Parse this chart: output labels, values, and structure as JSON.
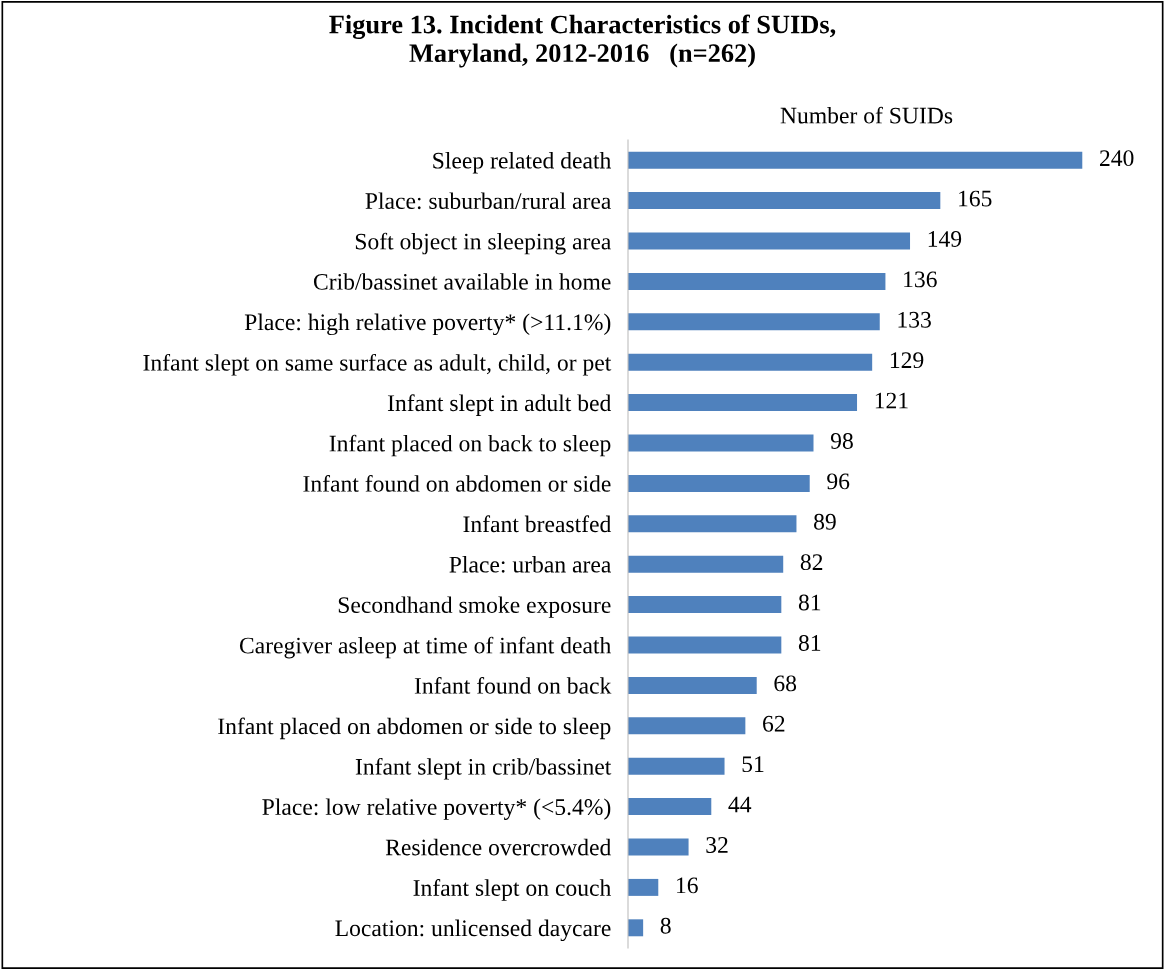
{
  "chart_data": {
    "type": "bar",
    "orientation": "horizontal",
    "title": "Figure 13. Incident Characteristics of SUIDs,\nMaryland, 2012-2016   (n=262)",
    "xlabel": "Number of SUIDs",
    "categories": [
      "Sleep related death",
      "Place: suburban/rural area",
      "Soft object in sleeping area",
      "Crib/bassinet available in home",
      "Place: high relative poverty* (>11.1%)",
      "Infant slept on same surface as adult, child, or pet",
      "Infant slept in adult bed",
      "Infant placed on back to sleep",
      "Infant found on abdomen or side",
      "Infant breastfed",
      "Place: urban area",
      "Secondhand smoke exposure",
      "Caregiver asleep at time of infant death",
      "Infant found on back",
      "Infant placed on abdomen or side to sleep",
      "Infant slept in crib/bassinet",
      "Place: low relative poverty* (<5.4%)",
      "Residence overcrowded",
      "Infant slept on couch",
      "Location: unlicensed daycare"
    ],
    "values": [
      240,
      165,
      149,
      136,
      133,
      129,
      121,
      98,
      96,
      89,
      82,
      81,
      81,
      68,
      62,
      51,
      44,
      32,
      16,
      8
    ],
    "color": "#4f81bd",
    "data_labels": true,
    "grid": false,
    "legend": false
  }
}
